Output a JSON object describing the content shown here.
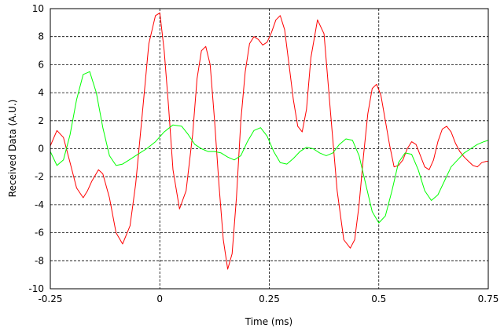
{
  "chart_data": {
    "type": "line",
    "xlabel": "Time (ms)",
    "ylabel": "Received Data (A.U.)",
    "xlim": [
      -0.25,
      0.75
    ],
    "ylim": [
      -10,
      10
    ],
    "x_ticks": [
      "-0.25",
      "0",
      "0.25",
      "0.5",
      "0.75"
    ],
    "x_tick_values": [
      -0.25,
      0,
      0.25,
      0.5,
      0.75
    ],
    "y_ticks": [
      "-10",
      "-8",
      "-6",
      "-4",
      "-2",
      "0",
      "2",
      "4",
      "6",
      "8",
      "10"
    ],
    "y_tick_values": [
      -10,
      -8,
      -6,
      -4,
      -2,
      0,
      2,
      4,
      6,
      8,
      10
    ],
    "grid": {
      "major_vertical": [
        0,
        0.25,
        0.5
      ],
      "major_horizontal": true
    },
    "series": [
      {
        "color": "#ff0000",
        "x": [
          -0.25,
          -0.235,
          -0.22,
          -0.205,
          -0.19,
          -0.175,
          -0.165,
          -0.155,
          -0.14,
          -0.13,
          -0.115,
          -0.1,
          -0.085,
          -0.068,
          -0.055,
          -0.04,
          -0.025,
          -0.01,
          0.0,
          0.01,
          0.02,
          0.03,
          0.045,
          0.06,
          0.075,
          0.085,
          0.095,
          0.105,
          0.115,
          0.125,
          0.135,
          0.145,
          0.155,
          0.165,
          0.175,
          0.185,
          0.195,
          0.205,
          0.215,
          0.225,
          0.235,
          0.245,
          0.255,
          0.265,
          0.275,
          0.285,
          0.295,
          0.305,
          0.315,
          0.325,
          0.335,
          0.345,
          0.36,
          0.375,
          0.39,
          0.405,
          0.42,
          0.435,
          0.445,
          0.455,
          0.465,
          0.475,
          0.485,
          0.495,
          0.505,
          0.515,
          0.525,
          0.535,
          0.545,
          0.555,
          0.565,
          0.575,
          0.585,
          0.595,
          0.605,
          0.615,
          0.625,
          0.635,
          0.645,
          0.655,
          0.665,
          0.675,
          0.685,
          0.695,
          0.705,
          0.715,
          0.725,
          0.735,
          0.745,
          0.75
        ],
        "y": [
          0.2,
          1.3,
          0.8,
          -1.0,
          -2.8,
          -3.5,
          -3.0,
          -2.3,
          -1.5,
          -1.8,
          -3.5,
          -6.0,
          -6.8,
          -5.5,
          -2.5,
          2.5,
          7.5,
          9.5,
          9.7,
          7.0,
          3.0,
          -1.5,
          -4.3,
          -3.0,
          1.0,
          5.0,
          7.0,
          7.3,
          6.0,
          2.0,
          -2.5,
          -6.5,
          -8.6,
          -7.5,
          -3.5,
          2.0,
          5.5,
          7.5,
          8.0,
          7.8,
          7.4,
          7.6,
          8.3,
          9.2,
          9.5,
          8.5,
          6.0,
          3.5,
          1.6,
          1.2,
          2.8,
          6.5,
          9.2,
          8.2,
          2.5,
          -3.0,
          -6.5,
          -7.1,
          -6.5,
          -4.0,
          -0.5,
          2.5,
          4.3,
          4.6,
          3.8,
          2.0,
          0.2,
          -1.3,
          -1.2,
          -0.8,
          0.0,
          0.5,
          0.3,
          -0.5,
          -1.3,
          -1.5,
          -0.8,
          0.5,
          1.4,
          1.6,
          1.2,
          0.4,
          -0.2,
          -0.6,
          -0.9,
          -1.2,
          -1.3,
          -1.0,
          -0.9,
          -0.9
        ]
      },
      {
        "color": "#00ff00",
        "x": [
          -0.25,
          -0.235,
          -0.22,
          -0.205,
          -0.19,
          -0.175,
          -0.16,
          -0.145,
          -0.13,
          -0.115,
          -0.1,
          -0.085,
          -0.07,
          -0.05,
          -0.03,
          -0.01,
          0.01,
          0.03,
          0.05,
          0.065,
          0.08,
          0.095,
          0.11,
          0.125,
          0.14,
          0.155,
          0.17,
          0.185,
          0.2,
          0.215,
          0.23,
          0.245,
          0.26,
          0.275,
          0.29,
          0.305,
          0.32,
          0.335,
          0.35,
          0.365,
          0.38,
          0.395,
          0.41,
          0.425,
          0.44,
          0.455,
          0.47,
          0.485,
          0.5,
          0.515,
          0.53,
          0.545,
          0.56,
          0.575,
          0.59,
          0.605,
          0.62,
          0.635,
          0.65,
          0.665,
          0.68,
          0.695,
          0.71,
          0.725,
          0.74,
          0.75
        ],
        "y": [
          -0.2,
          -1.2,
          -0.8,
          1.0,
          3.5,
          5.3,
          5.5,
          4.0,
          1.5,
          -0.5,
          -1.2,
          -1.1,
          -0.8,
          -0.4,
          0.0,
          0.5,
          1.2,
          1.7,
          1.6,
          1.0,
          0.3,
          0.0,
          -0.2,
          -0.2,
          -0.3,
          -0.6,
          -0.8,
          -0.5,
          0.5,
          1.3,
          1.5,
          0.9,
          -0.2,
          -1.0,
          -1.1,
          -0.7,
          -0.2,
          0.1,
          0.0,
          -0.3,
          -0.5,
          -0.3,
          0.3,
          0.7,
          0.6,
          -0.5,
          -2.5,
          -4.5,
          -5.3,
          -4.8,
          -3.0,
          -1.0,
          -0.3,
          -0.4,
          -1.5,
          -3.0,
          -3.7,
          -3.3,
          -2.3,
          -1.3,
          -0.8,
          -0.3,
          0.0,
          0.3,
          0.5,
          0.6
        ]
      }
    ]
  }
}
